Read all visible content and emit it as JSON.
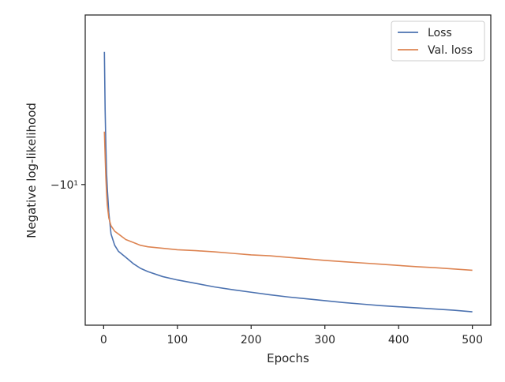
{
  "chart_data": {
    "type": "line",
    "xlabel": "Epochs",
    "ylabel": "Negative log-likelihood",
    "y_scale": "symlog",
    "xlim": [
      -25,
      525
    ],
    "ylim": [
      -5.3,
      -21.5
    ],
    "grid": false,
    "legend_placement": "top-right",
    "x_ticks": [
      0,
      100,
      200,
      300,
      400,
      500
    ],
    "x_tick_labels": [
      "0",
      "100",
      "200",
      "300",
      "400",
      "500"
    ],
    "y_ticks": [
      -10
    ],
    "y_tick_labels": [
      "−10¹"
    ],
    "series": [
      {
        "name": "Loss",
        "color": "#4c72b0",
        "x": [
          1,
          2,
          3,
          4,
          5,
          7,
          10,
          15,
          20,
          30,
          40,
          50,
          60,
          80,
          100,
          125,
          150,
          175,
          200,
          225,
          250,
          275,
          300,
          325,
          350,
          375,
          400,
          425,
          450,
          475,
          500
        ],
        "y": [
          -18.2,
          -14.0,
          -11.9,
          -10.5,
          -9.8,
          -8.8,
          -8.0,
          -7.6,
          -7.4,
          -7.2,
          -7.0,
          -6.85,
          -6.75,
          -6.6,
          -6.5,
          -6.4,
          -6.3,
          -6.22,
          -6.15,
          -6.08,
          -6.02,
          -5.97,
          -5.92,
          -5.87,
          -5.83,
          -5.79,
          -5.76,
          -5.73,
          -5.7,
          -5.67,
          -5.63
        ]
      },
      {
        "name": "Val. loss",
        "color": "#dd8452",
        "x": [
          1,
          2,
          3,
          4,
          5,
          7,
          10,
          15,
          20,
          30,
          40,
          50,
          60,
          80,
          100,
          125,
          150,
          175,
          200,
          225,
          250,
          275,
          300,
          325,
          350,
          375,
          400,
          425,
          450,
          475,
          500
        ],
        "y": [
          -12.7,
          -11.4,
          -10.3,
          -9.6,
          -9.1,
          -8.6,
          -8.3,
          -8.1,
          -8.0,
          -7.8,
          -7.7,
          -7.6,
          -7.55,
          -7.5,
          -7.45,
          -7.42,
          -7.38,
          -7.33,
          -7.28,
          -7.25,
          -7.2,
          -7.15,
          -7.1,
          -7.06,
          -7.02,
          -6.98,
          -6.94,
          -6.9,
          -6.87,
          -6.83,
          -6.79
        ]
      }
    ]
  }
}
